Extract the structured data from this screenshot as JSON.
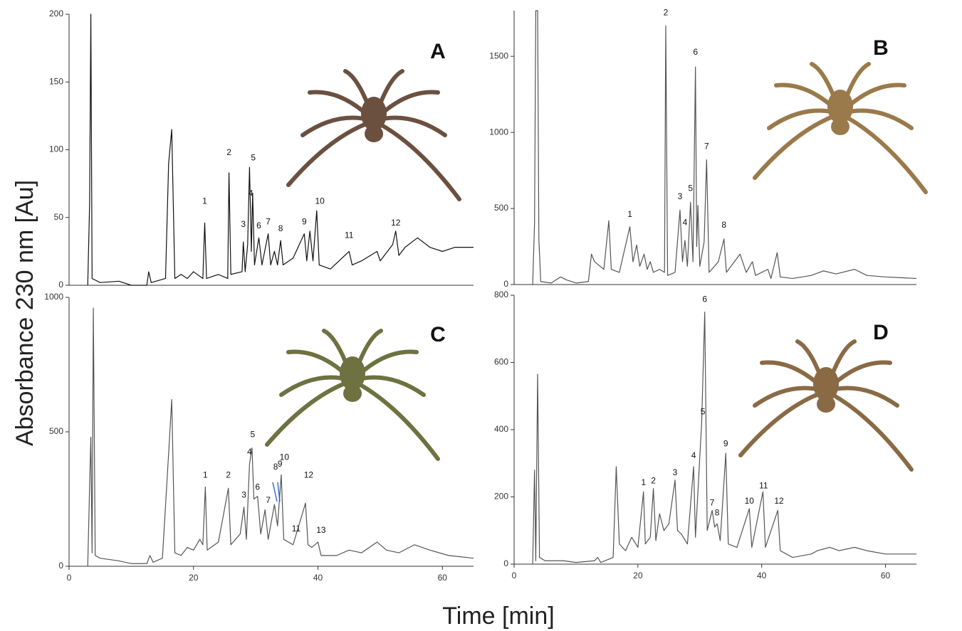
{
  "ylabel": "Absorbance 230 nm [Au]",
  "xlabel": "Time [min]",
  "chart_data": [
    {
      "type": "line",
      "title": "A",
      "color": "#111111",
      "xlim": [
        0,
        65
      ],
      "ylim": [
        0,
        200
      ],
      "yticks": [
        0,
        50,
        100,
        150,
        200
      ],
      "x": [
        3,
        3.3,
        3.5,
        3.7,
        5,
        8,
        10,
        12.5,
        12.8,
        13.2,
        15.5,
        16,
        16.5,
        17,
        18,
        19,
        20,
        21.5,
        21.8,
        22.1,
        24,
        25.5,
        25.7,
        26,
        27.8,
        28,
        28.3,
        28.7,
        29,
        29.3,
        29.5,
        29.8,
        30.5,
        31,
        32,
        32.4,
        33,
        33.5,
        34,
        34.4,
        36,
        37.8,
        38.2,
        38.7,
        39.2,
        39.8,
        40.2,
        42,
        45,
        45.5,
        47,
        49.5,
        50,
        52,
        52.5,
        53,
        54,
        56,
        58,
        60,
        62,
        65
      ],
      "values": [
        0,
        60,
        200,
        5,
        2,
        3,
        0,
        0,
        10,
        2,
        5,
        90,
        115,
        5,
        8,
        5,
        10,
        5,
        46,
        5,
        8,
        5,
        83,
        8,
        10,
        32,
        10,
        30,
        87,
        25,
        68,
        15,
        35,
        15,
        38,
        15,
        25,
        15,
        33,
        15,
        20,
        38,
        18,
        40,
        18,
        55,
        15,
        12,
        25,
        15,
        18,
        25,
        18,
        30,
        40,
        22,
        28,
        35,
        28,
        25,
        28,
        28
      ],
      "peak_labels": [
        {
          "label": "1",
          "x": 21.8,
          "y": 60
        },
        {
          "label": "2",
          "x": 25.7,
          "y": 96
        },
        {
          "label": "3",
          "x": 28,
          "y": 43
        },
        {
          "label": "4",
          "x": 29.2,
          "y": 66
        },
        {
          "label": "5",
          "x": 29.6,
          "y": 92
        },
        {
          "label": "6",
          "x": 30.5,
          "y": 42
        },
        {
          "label": "7",
          "x": 32,
          "y": 45
        },
        {
          "label": "8",
          "x": 34,
          "y": 40
        },
        {
          "label": "9",
          "x": 37.8,
          "y": 45
        },
        {
          "label": "10",
          "x": 40.3,
          "y": 60
        },
        {
          "label": "11",
          "x": 45,
          "y": 35
        },
        {
          "label": "12",
          "x": 52.5,
          "y": 44
        }
      ]
    },
    {
      "type": "line",
      "title": "B",
      "color": "#555555",
      "xlim": [
        0,
        65
      ],
      "ylim": [
        0,
        1800
      ],
      "yticks": [
        0,
        500,
        1000,
        1500
      ],
      "x": [
        3,
        3.3,
        3.5,
        3.8,
        4,
        4.3,
        6,
        7.5,
        8.5,
        10,
        12,
        12.5,
        13,
        14.5,
        15.3,
        15.7,
        17,
        18.7,
        19.2,
        19.8,
        20.3,
        21,
        21.5,
        22,
        22.5,
        23.5,
        24.3,
        24.5,
        24.8,
        26,
        26.8,
        27.2,
        27.6,
        28,
        28.5,
        28.9,
        29.3,
        29.5,
        29.7,
        30,
        30.7,
        31.1,
        31.5,
        33,
        33.9,
        34.3,
        36.5,
        37,
        37.5,
        38.5,
        39,
        41,
        41.5,
        42.5,
        43,
        45,
        48,
        50,
        52,
        55,
        57,
        60,
        65
      ],
      "values": [
        0,
        400,
        1800,
        1800,
        300,
        20,
        10,
        50,
        30,
        10,
        20,
        200,
        150,
        100,
        420,
        100,
        80,
        380,
        150,
        260,
        120,
        200,
        100,
        150,
        80,
        100,
        80,
        1700,
        60,
        80,
        490,
        150,
        290,
        120,
        540,
        150,
        1430,
        250,
        520,
        120,
        280,
        820,
        80,
        150,
        300,
        80,
        200,
        140,
        80,
        150,
        60,
        100,
        40,
        210,
        50,
        40,
        60,
        90,
        70,
        100,
        60,
        50,
        40
      ],
      "peak_labels": [
        {
          "label": "1",
          "x": 18.7,
          "y": 445
        },
        {
          "label": "2",
          "x": 24.5,
          "y": 1770
        },
        {
          "label": "3",
          "x": 26.8,
          "y": 560
        },
        {
          "label": "4",
          "x": 27.6,
          "y": 390
        },
        {
          "label": "5",
          "x": 28.5,
          "y": 615
        },
        {
          "label": "6",
          "x": 29.3,
          "y": 1510
        },
        {
          "label": "7",
          "x": 31.1,
          "y": 890
        },
        {
          "label": "8",
          "x": 33.9,
          "y": 375
        }
      ]
    },
    {
      "type": "line",
      "title": "C",
      "color": "#555555",
      "xlim": [
        0,
        65
      ],
      "ylim": [
        0,
        1000
      ],
      "yticks": [
        0,
        500,
        1000
      ],
      "xticks": [
        0,
        20,
        40,
        60
      ],
      "x": [
        3,
        3.3,
        3.5,
        3.7,
        3.9,
        4.2,
        5,
        8,
        10,
        12.5,
        13,
        13.5,
        15,
        16,
        16.5,
        17,
        18,
        19,
        20,
        21,
        21.5,
        21.9,
        22.2,
        24,
        25.6,
        26,
        27.5,
        28.1,
        28.5,
        29,
        29.4,
        29.7,
        30.3,
        30.8,
        31.5,
        32,
        33,
        33.5,
        34.1,
        34.5,
        36,
        38,
        38.4,
        39,
        40,
        40.5,
        43,
        45,
        47,
        49.5,
        51,
        53,
        55.5,
        58,
        61,
        65
      ],
      "values": [
        0,
        300,
        480,
        50,
        960,
        40,
        30,
        20,
        10,
        10,
        40,
        15,
        30,
        420,
        620,
        50,
        40,
        70,
        60,
        100,
        80,
        295,
        60,
        90,
        290,
        80,
        120,
        220,
        100,
        380,
        440,
        250,
        260,
        120,
        210,
        100,
        230,
        150,
        340,
        100,
        80,
        235,
        80,
        70,
        90,
        40,
        40,
        60,
        50,
        90,
        60,
        50,
        80,
        60,
        40,
        30
      ],
      "peak_labels": [
        {
          "label": "1",
          "x": 21.9,
          "y": 330
        },
        {
          "label": "2",
          "x": 25.6,
          "y": 330
        },
        {
          "label": "3",
          "x": 28.1,
          "y": 255
        },
        {
          "label": "4",
          "x": 29,
          "y": 415
        },
        {
          "label": "5",
          "x": 29.5,
          "y": 480
        },
        {
          "label": "6",
          "x": 30.3,
          "y": 285
        },
        {
          "label": "7",
          "x": 32,
          "y": 235
        },
        {
          "label": "8",
          "x": 33.2,
          "y": 360
        },
        {
          "label": "9",
          "x": 33.9,
          "y": 370
        },
        {
          "label": "10",
          "x": 34.6,
          "y": 395
        },
        {
          "label": "11",
          "x": 36.5,
          "y": 130
        },
        {
          "label": "12",
          "x": 38.5,
          "y": 330
        },
        {
          "label": "13",
          "x": 40.5,
          "y": 125
        }
      ]
    },
    {
      "type": "line",
      "title": "D",
      "color": "#555555",
      "xlim": [
        0,
        65
      ],
      "ylim": [
        0,
        800
      ],
      "yticks": [
        0,
        200,
        400,
        600,
        800
      ],
      "xticks": [
        0,
        20,
        40,
        60
      ],
      "x": [
        3,
        3.3,
        3.5,
        3.8,
        4.1,
        5,
        8,
        10,
        13,
        13.5,
        14,
        16,
        16.5,
        17,
        18,
        19,
        20,
        20.9,
        21.2,
        22,
        22.5,
        22.9,
        23.5,
        24.2,
        25,
        26,
        26.4,
        27,
        28,
        29,
        29.3,
        30.3,
        30.8,
        31.2,
        32,
        32.4,
        32.8,
        33.3,
        34.2,
        34.6,
        36,
        38,
        38.4,
        40.2,
        40.6,
        42.6,
        43,
        45,
        48,
        49,
        51,
        52.5,
        55,
        57,
        60,
        65
      ],
      "values": [
        0,
        280,
        10,
        565,
        20,
        10,
        10,
        5,
        10,
        20,
        5,
        20,
        290,
        60,
        40,
        80,
        50,
        215,
        60,
        80,
        225,
        70,
        150,
        100,
        120,
        250,
        100,
        90,
        60,
        290,
        80,
        420,
        750,
        100,
        160,
        110,
        120,
        70,
        330,
        60,
        50,
        165,
        50,
        215,
        50,
        160,
        40,
        20,
        30,
        40,
        50,
        40,
        50,
        40,
        30,
        30
      ],
      "peak_labels": [
        {
          "label": "1",
          "x": 20.9,
          "y": 235
        },
        {
          "label": "2",
          "x": 22.5,
          "y": 240
        },
        {
          "label": "3",
          "x": 26,
          "y": 265
        },
        {
          "label": "4",
          "x": 29,
          "y": 315
        },
        {
          "label": "5",
          "x": 30.5,
          "y": 445
        },
        {
          "label": "6",
          "x": 30.8,
          "y": 780
        },
        {
          "label": "7",
          "x": 32,
          "y": 175
        },
        {
          "label": "8",
          "x": 32.8,
          "y": 145
        },
        {
          "label": "9",
          "x": 34.2,
          "y": 350
        },
        {
          "label": "10",
          "x": 38,
          "y": 180
        },
        {
          "label": "11",
          "x": 40.3,
          "y": 225
        },
        {
          "label": "12",
          "x": 42.8,
          "y": 180
        }
      ]
    }
  ]
}
